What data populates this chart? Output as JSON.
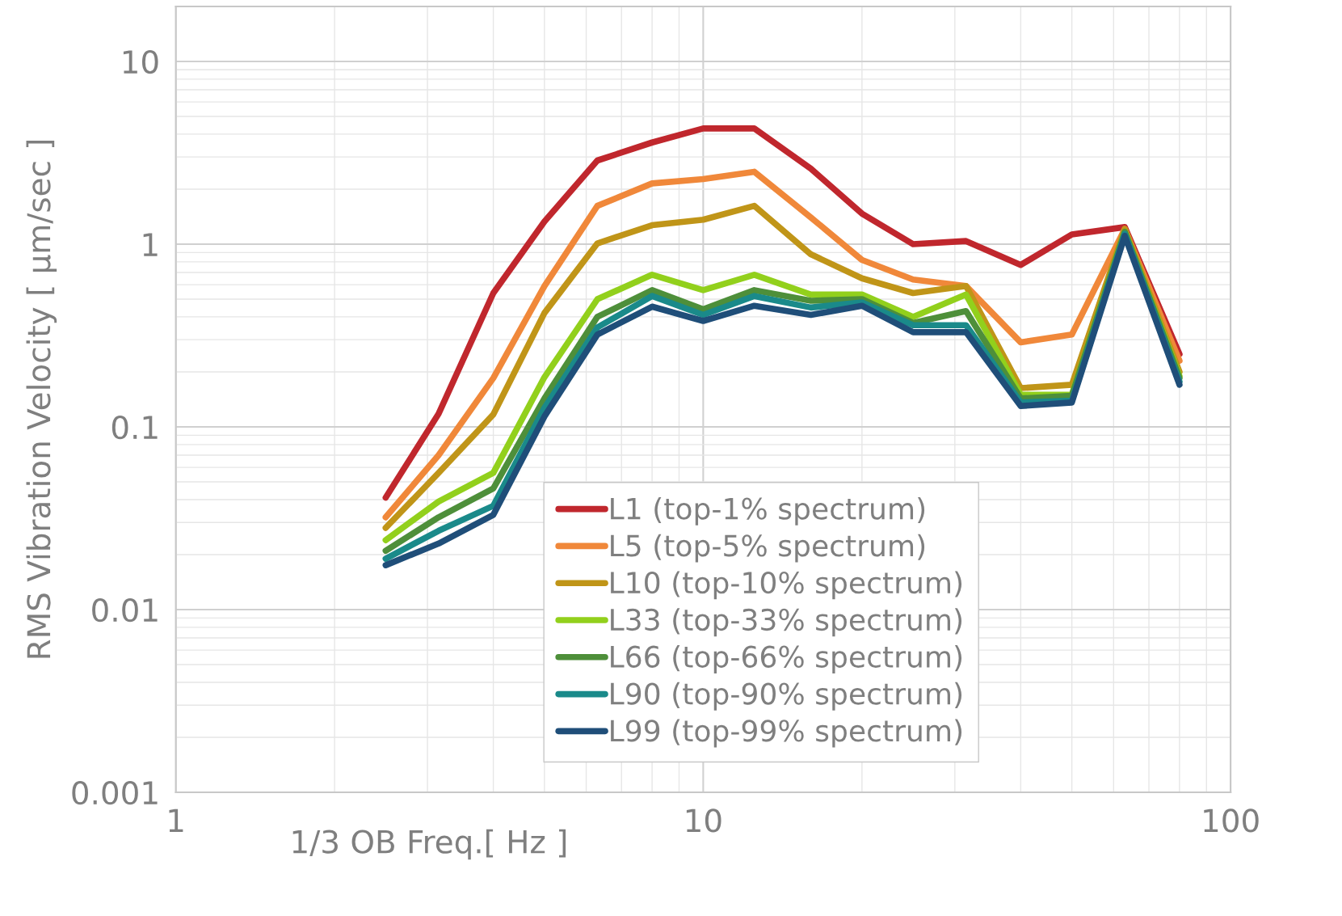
{
  "chart_data": {
    "type": "line",
    "xlabel": "1/3 OB Freq.[ Hz ]",
    "ylabel": "RMS Vibration Velocity [ µm/sec ]",
    "log": "xy",
    "grid": true,
    "legend": "bottom",
    "marker": "none",
    "line_style": "solid",
    "xlim": [
      1,
      100
    ],
    "xticks": [
      1,
      10,
      100
    ],
    "ylim": [
      0.001,
      20
    ],
    "yticks": [
      0.001,
      0.01,
      0.1,
      1,
      10
    ],
    "x": [
      2.5,
      3.15,
      4,
      5,
      6.3,
      8,
      10,
      12.5,
      16,
      20,
      25,
      31.5,
      40,
      50,
      63,
      80
    ],
    "series": [
      {
        "name": "L1 (top-1% spectrum)",
        "color": "#c0272d",
        "values": [
          0.041,
          0.118,
          0.54,
          1.33,
          2.87,
          3.6,
          4.3,
          4.3,
          2.59,
          1.47,
          1.0,
          1.04,
          0.77,
          1.13,
          1.24,
          0.25
        ]
      },
      {
        "name": "L5 (top-5% spectrum)",
        "color": "#f0883a",
        "values": [
          0.032,
          0.07,
          0.185,
          0.59,
          1.62,
          2.15,
          2.27,
          2.49,
          1.4,
          0.82,
          0.64,
          0.59,
          0.29,
          0.32,
          1.21,
          0.23
        ]
      },
      {
        "name": "L10 (top-10% spectrum)",
        "color": "#c09518",
        "values": [
          0.028,
          0.056,
          0.117,
          0.42,
          1.01,
          1.27,
          1.36,
          1.62,
          0.88,
          0.65,
          0.54,
          0.59,
          0.163,
          0.17,
          1.21,
          0.2
        ]
      },
      {
        "name": "L33 (top-33% spectrum)",
        "color": "#92d01c",
        "values": [
          0.024,
          0.039,
          0.056,
          0.187,
          0.5,
          0.68,
          0.56,
          0.68,
          0.53,
          0.53,
          0.4,
          0.53,
          0.15,
          0.15,
          1.17,
          0.19
        ]
      },
      {
        "name": "L66 (top-66% spectrum)",
        "color": "#4e8f3a",
        "values": [
          0.021,
          0.032,
          0.046,
          0.143,
          0.4,
          0.56,
          0.44,
          0.56,
          0.49,
          0.5,
          0.37,
          0.43,
          0.143,
          0.148,
          1.17,
          0.185
        ]
      },
      {
        "name": "L90 (top-90% spectrum)",
        "color": "#1a8a8a",
        "values": [
          0.019,
          0.027,
          0.037,
          0.127,
          0.35,
          0.52,
          0.41,
          0.52,
          0.45,
          0.48,
          0.36,
          0.36,
          0.136,
          0.139,
          1.14,
          0.177
        ]
      },
      {
        "name": "L99 (top-99% spectrum)",
        "color": "#1f4e79",
        "values": [
          0.0175,
          0.023,
          0.033,
          0.114,
          0.32,
          0.455,
          0.38,
          0.46,
          0.41,
          0.46,
          0.33,
          0.33,
          0.13,
          0.136,
          1.11,
          0.17
        ]
      }
    ]
  }
}
